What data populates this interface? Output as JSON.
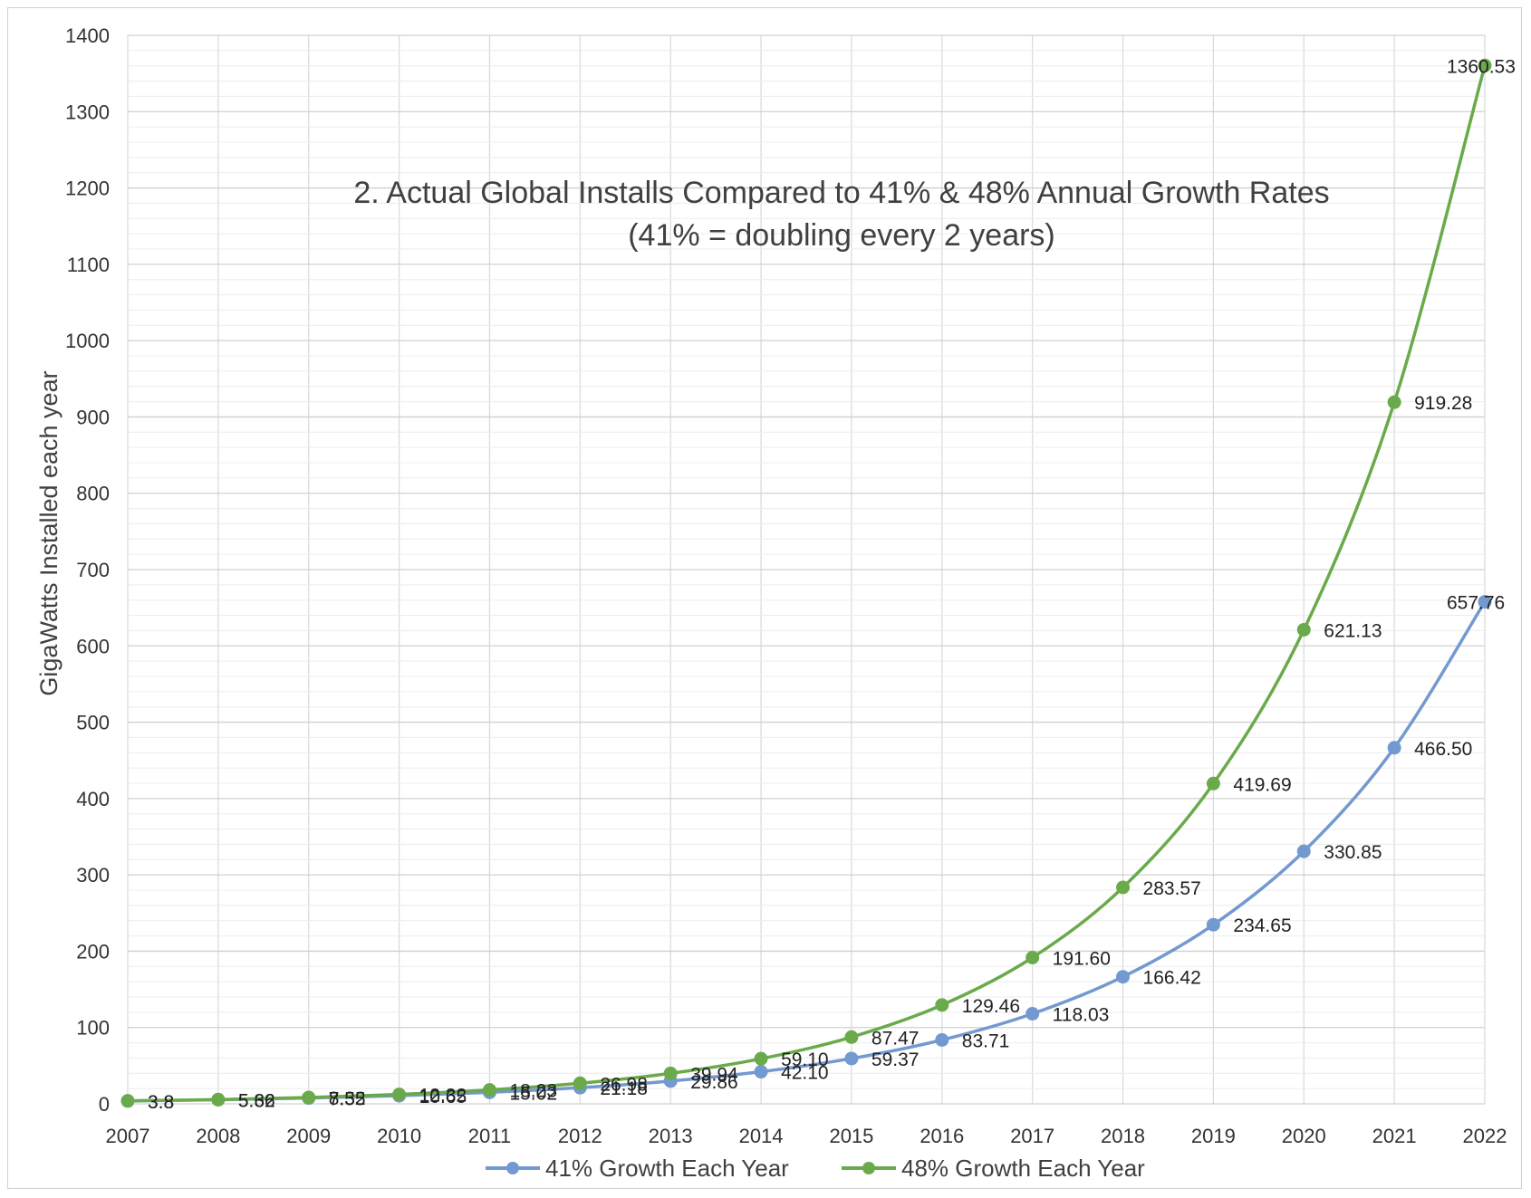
{
  "chart_data": {
    "type": "line",
    "title": "2. Actual Global Installs Compared to 41% & 48% Annual Growth Rates",
    "subtitle": "(41% = doubling every 2 years)",
    "xlabel": "",
    "ylabel": "GigaWatts Installed each year",
    "ylim": [
      0,
      1400
    ],
    "yticks": [
      "0",
      "100",
      "200",
      "300",
      "400",
      "500",
      "600",
      "700",
      "800",
      "900",
      "1000",
      "1100",
      "1200",
      "1300",
      "1400"
    ],
    "categories": [
      "2007",
      "2008",
      "2009",
      "2010",
      "2011",
      "2012",
      "2013",
      "2014",
      "2015",
      "2016",
      "2017",
      "2018",
      "2019",
      "2020",
      "2021",
      "2022"
    ],
    "grid": true,
    "legend_position": "bottom",
    "series": [
      {
        "name": "41% Growth Each Year",
        "color": "#7399d0",
        "values": [
          3.8,
          5.36,
          7.55,
          10.65,
          15.02,
          21.18,
          29.86,
          42.1,
          59.37,
          83.71,
          118.03,
          166.42,
          234.65,
          330.85,
          466.5,
          657.76
        ],
        "labels": [
          "3.8",
          "5.36",
          "7.55",
          "10.65",
          "15.02",
          "21.18",
          "29.86",
          "42.10",
          "59.37",
          "83.71",
          "118.03",
          "166.42",
          "234.65",
          "330.85",
          "466.50",
          "657.76"
        ]
      },
      {
        "name": "48% Growth Each Year",
        "color": "#6aaa4a",
        "values": [
          3.8,
          5.62,
          8.32,
          12.32,
          18.23,
          26.98,
          39.94,
          59.1,
          87.47,
          129.46,
          191.6,
          283.57,
          419.69,
          621.13,
          919.28,
          1360.53
        ],
        "labels": [
          "3.8",
          "5.62",
          "8.32",
          "12.32",
          "18.23",
          "26.98",
          "39.94",
          "59.10",
          "87.47",
          "129.46",
          "191.60",
          "283.57",
          "419.69",
          "621.13",
          "919.28",
          "1360.53"
        ]
      }
    ]
  }
}
